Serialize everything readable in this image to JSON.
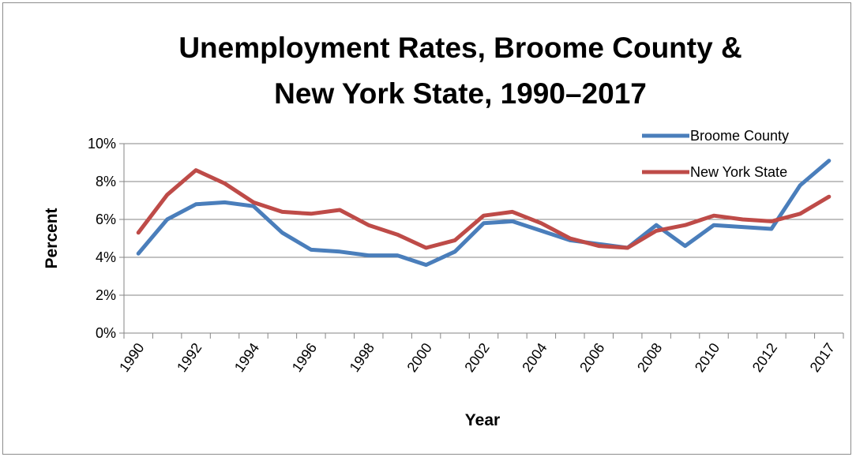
{
  "chart_data": {
    "type": "line",
    "title": "Unemployment Rates, Broome County & New York State, 1990–2017",
    "title_lines": [
      "Unemployment Rates, Broome County &",
      "New York State, 1990–2017"
    ],
    "xlabel": "Year",
    "ylabel": "Percent",
    "x": [
      "1990",
      "1991",
      "1992",
      "1993",
      "1994",
      "1995",
      "1996",
      "1997",
      "1998",
      "1999",
      "2000",
      "2001",
      "2002",
      "2003",
      "2004",
      "2005",
      "2006",
      "2007",
      "2008",
      "2009",
      "2010",
      "2011",
      "2012",
      "2013",
      "2017"
    ],
    "x_tick_labels": [
      "1990",
      "1992",
      "1994",
      "1996",
      "1998",
      "2000",
      "2002",
      "2004",
      "2006",
      "2008",
      "2010",
      "2012",
      "2017"
    ],
    "y_tick_labels": [
      "0%",
      "2%",
      "4%",
      "6%",
      "8%",
      "10%"
    ],
    "ylim": [
      0,
      10
    ],
    "grid": "horizontal",
    "legend_position": "top-right",
    "series": [
      {
        "name": "Broome County",
        "color": "#4a7ebb",
        "values": [
          4.2,
          6.0,
          6.8,
          6.9,
          6.7,
          5.3,
          4.4,
          4.3,
          4.1,
          4.1,
          3.6,
          4.3,
          5.8,
          5.9,
          5.4,
          4.9,
          4.7,
          4.5,
          5.7,
          4.6,
          5.7,
          5.6,
          5.5,
          7.8,
          9.1
        ]
      },
      {
        "name": "New York State",
        "color": "#be4b48",
        "values": [
          5.3,
          7.3,
          8.6,
          7.9,
          6.9,
          6.4,
          6.3,
          6.5,
          5.7,
          5.2,
          4.5,
          4.9,
          6.2,
          6.4,
          5.8,
          5.0,
          4.6,
          4.5,
          5.4,
          5.7,
          6.2,
          6.0,
          5.9,
          6.3,
          7.2
        ]
      }
    ]
  }
}
